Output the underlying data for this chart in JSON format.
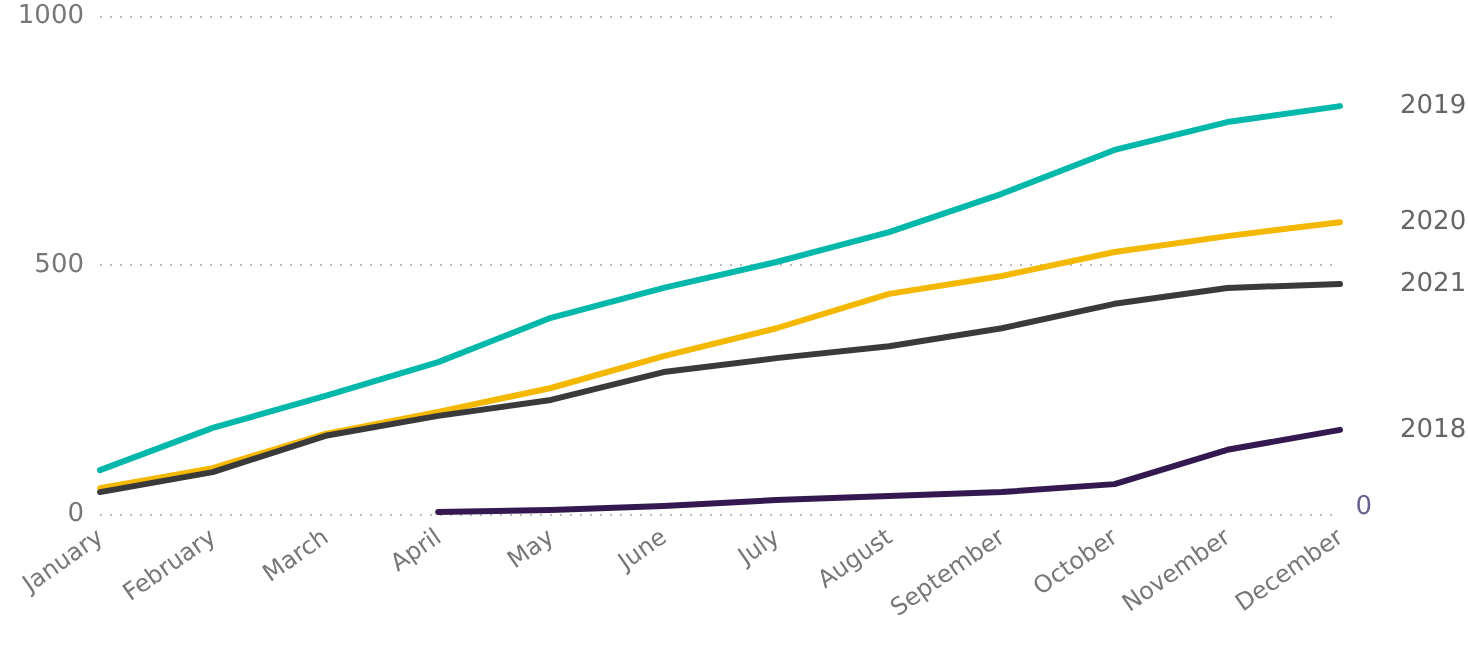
{
  "chart_data": {
    "type": "line",
    "categories": [
      "January",
      "February",
      "March",
      "April",
      "May",
      "June",
      "July",
      "August",
      "September",
      "October",
      "November",
      "December"
    ],
    "series": [
      {
        "name": "2019",
        "color": "#01b8aa",
        "values": [
          88,
          173,
          237,
          305,
          394,
          454,
          506,
          566,
          643,
          731,
          787,
          819
        ]
      },
      {
        "name": "2020",
        "color": "#f5b800",
        "values": [
          52,
          92,
          161,
          205,
          253,
          317,
          373,
          442,
          478,
          526,
          558,
          586
        ]
      },
      {
        "name": "2021",
        "color": "#3a3a3a",
        "values": [
          44,
          84,
          157,
          197,
          229,
          285,
          313,
          337,
          373,
          422,
          454,
          462
        ]
      },
      {
        "name": "2018",
        "color": "#33194f",
        "values": [
          null,
          null,
          null,
          4,
          8,
          16,
          28,
          36,
          44,
          60,
          129,
          169
        ]
      }
    ],
    "ylim": [
      0,
      1000
    ],
    "yticks": [
      0,
      500,
      1000
    ],
    "grid": "y",
    "legend": false,
    "marker": "none",
    "line_style": "solid",
    "annotations": [
      "0"
    ]
  }
}
